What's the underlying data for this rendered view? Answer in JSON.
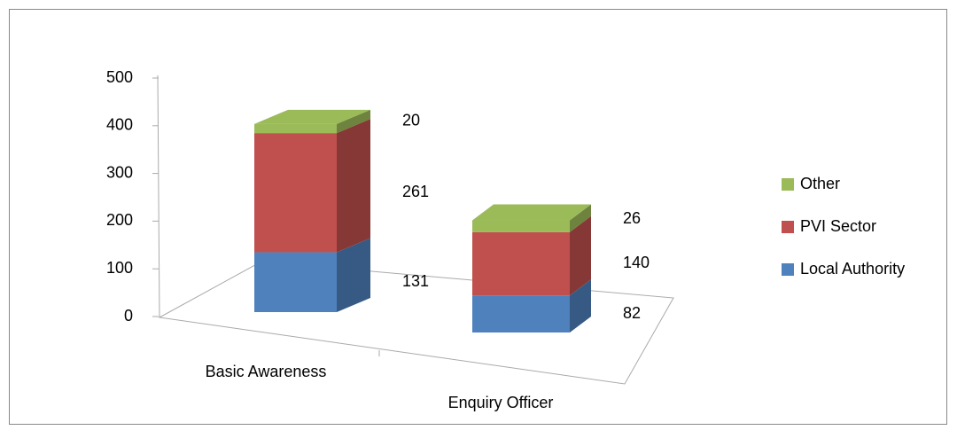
{
  "chart_data": {
    "type": "bar3d_stacked",
    "categories": [
      "Basic Awareness",
      "Enquiry Officer"
    ],
    "series": [
      {
        "name": "Local Authority",
        "color": "#4f81bd",
        "values": [
          131,
          82
        ]
      },
      {
        "name": "PVI Sector",
        "color": "#c0504d",
        "values": [
          261,
          140
        ]
      },
      {
        "name": "Other",
        "color": "#9bbb59",
        "values": [
          20,
          26
        ]
      }
    ],
    "ylim": [
      0,
      500
    ],
    "yticks": [
      0,
      100,
      200,
      300,
      400,
      500
    ],
    "legend": "right"
  }
}
